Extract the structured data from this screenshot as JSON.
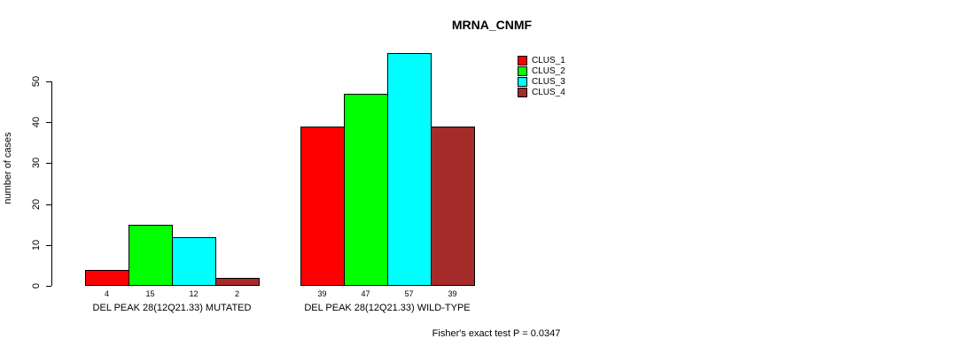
{
  "chart_data": {
    "type": "bar",
    "title": "MRNA_CNMF",
    "ylabel": "number of cases",
    "ylim": [
      0,
      50
    ],
    "yticks": [
      0,
      10,
      20,
      30,
      40,
      50
    ],
    "grid": false,
    "legend_position": "top-right",
    "legend": [
      {
        "label": "CLUS_1",
        "color": "#FF0000"
      },
      {
        "label": "CLUS_2",
        "color": "#00FF00"
      },
      {
        "label": "CLUS_3",
        "color": "#00FFFF"
      },
      {
        "label": "CLUS_4",
        "color": "#A52A2A"
      }
    ],
    "series_names": [
      "CLUS_1",
      "CLUS_2",
      "CLUS_3",
      "CLUS_4"
    ],
    "groups": [
      {
        "label": "DEL PEAK 28(12Q21.33) MUTATED",
        "values": [
          4,
          15,
          12,
          2
        ]
      },
      {
        "label": "DEL PEAK 28(12Q21.33) WILD-TYPE",
        "values": [
          39,
          47,
          57,
          39
        ]
      }
    ],
    "footnote": "Fisher's exact test P = 0.0347",
    "colors": {
      "background": "#FFFFFF",
      "axis": "#000000",
      "text": "#000000"
    }
  }
}
